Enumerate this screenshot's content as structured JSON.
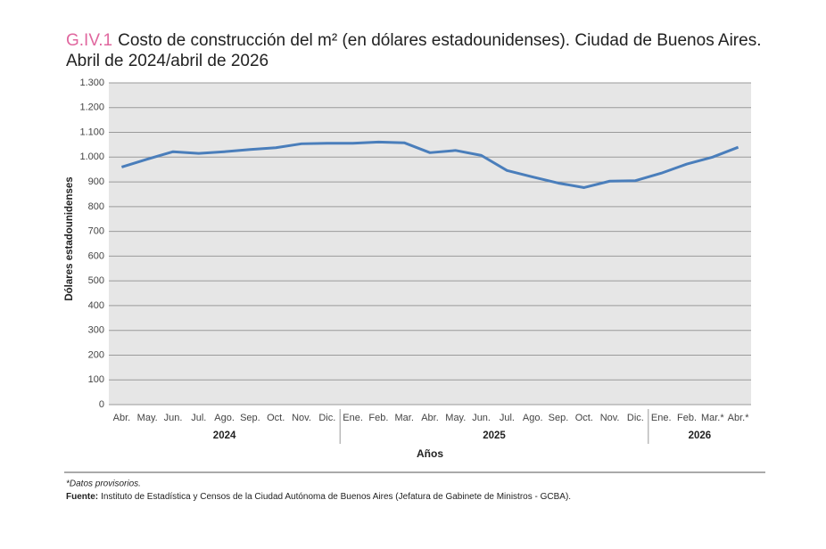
{
  "chart_data": {
    "type": "line",
    "figure_label": "G.IV.1",
    "title": "Costo de construcción del m² (en dólares estadounidenses). Ciudad de Buenos Aires.",
    "subtitle": "Abril de 2024/abril de 2026",
    "y_label": "Dólares estadounidenses",
    "x_label": "Años",
    "category_groups": [
      {
        "label": "2024",
        "categories": [
          "Abr.",
          "May.",
          "Jun.",
          "Jul.",
          "Ago.",
          "Sep.",
          "Oct.",
          "Nov.",
          "Dic."
        ]
      },
      {
        "label": "2025",
        "categories": [
          "Ene.",
          "Feb.",
          "Mar.",
          "Abr.",
          "May.",
          "Jun.",
          "Jul.",
          "Ago.",
          "Sep.",
          "Oct.",
          "Nov.",
          "Dic."
        ]
      },
      {
        "label": "2026",
        "categories": [
          "Ene.",
          "Feb.",
          "Mar.*",
          "Abr.*"
        ]
      }
    ],
    "series": [
      {
        "name": "Costo de construcción",
        "color": "#4a7ebb",
        "values": [
          960,
          992,
          1022,
          1015,
          1022,
          1031,
          1038,
          1054,
          1056,
          1056,
          1061,
          1058,
          1018,
          1027,
          1007,
          946,
          920,
          895,
          877,
          903,
          905,
          935,
          972,
          1000,
          1040
        ]
      }
    ],
    "ylim": [
      0,
      1300
    ],
    "yticks": [
      0,
      100,
      200,
      300,
      400,
      500,
      600,
      700,
      800,
      900,
      {
        "value": 1000,
        "label": "1.000"
      },
      {
        "value": 1100,
        "label": "1.100"
      },
      {
        "value": 1200,
        "label": "1.200"
      },
      {
        "value": 1300,
        "label": "1.300"
      }
    ],
    "grid": true,
    "note": "*Datos provisorios.",
    "source_label": "Fuente:",
    "source": "Instituto de Estadística y Censos de la Ciudad Autónoma de Buenos Aires (Jefatura de Gabinete de Ministros - GCBA)."
  }
}
